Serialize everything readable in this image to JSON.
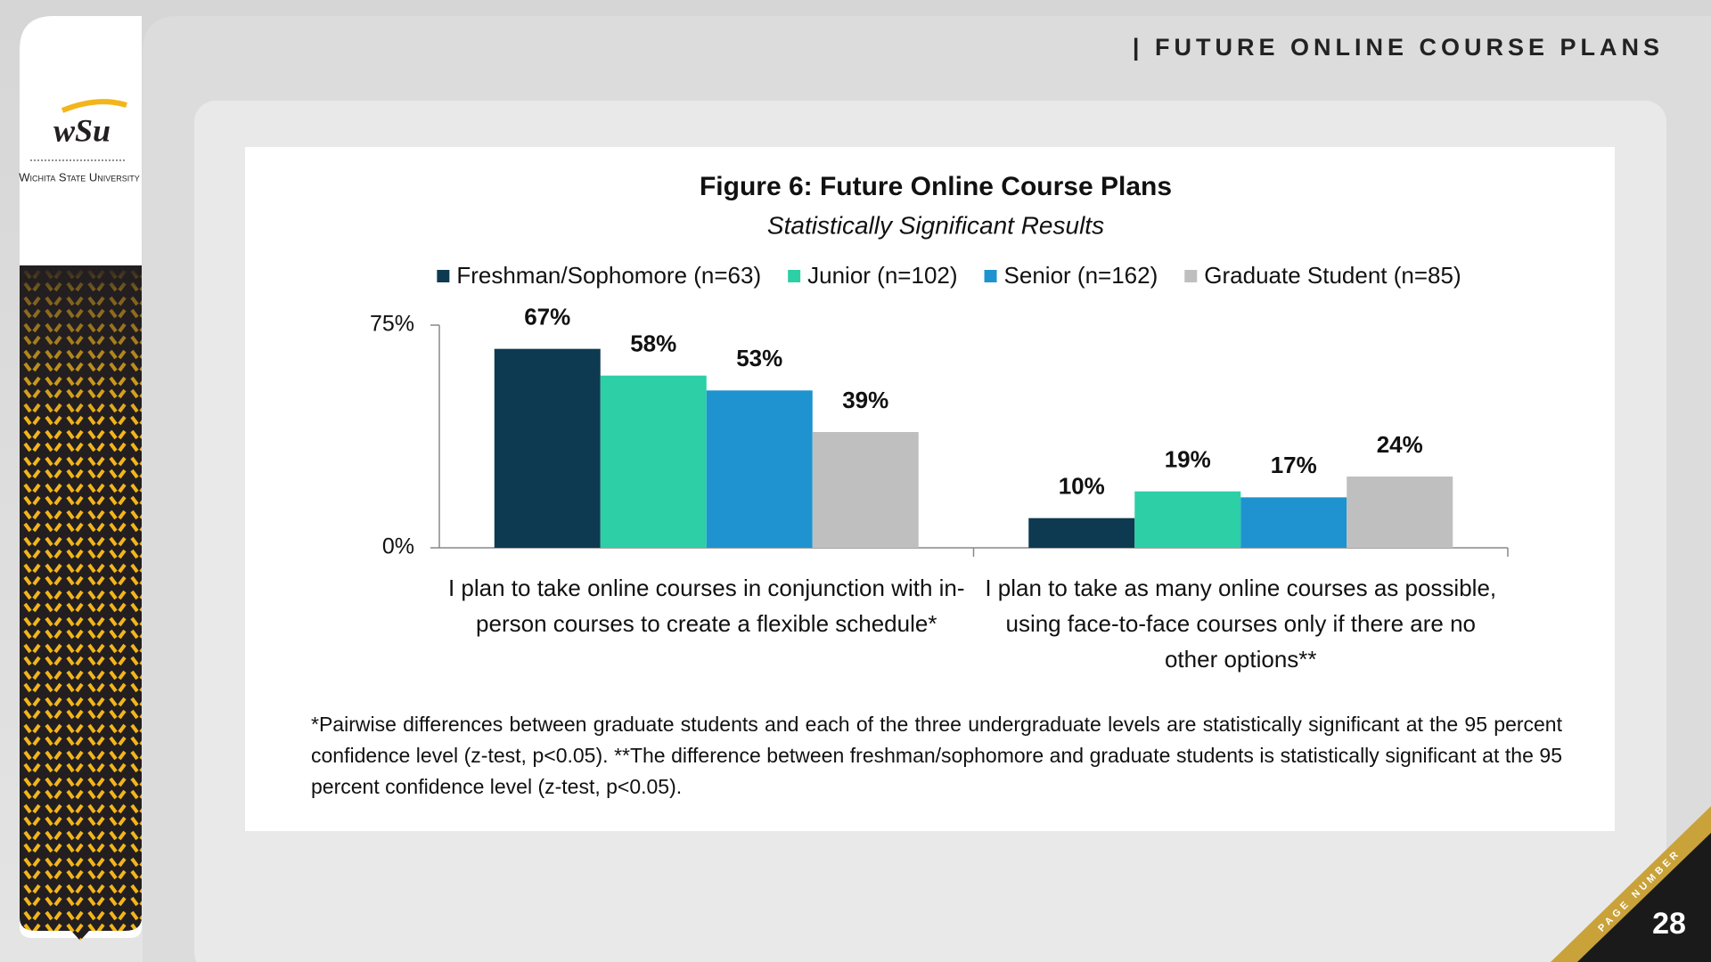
{
  "header": {
    "title": "| FUTURE ONLINE COURSE PLANS"
  },
  "logo": {
    "mark": "wSu",
    "name": "Wichita State University"
  },
  "chart_data": {
    "type": "bar",
    "title": "Figure 6: Future Online Course Plans",
    "subtitle": "Statistically Significant Results",
    "categories": [
      "I plan to take online courses in conjunction with in-person courses to create a flexible schedule*",
      "I plan to take as many online courses as possible, using face-to-face courses only if there are no other options**"
    ],
    "series": [
      {
        "name": "Freshman/Sophomore (n=63)",
        "color": "#0d3a50",
        "values": [
          67,
          10
        ],
        "value_labels": [
          "67%",
          "10%"
        ]
      },
      {
        "name": "Junior (n=102)",
        "color": "#2dcfa6",
        "values": [
          58,
          19
        ],
        "value_labels": [
          "58%",
          "19%"
        ]
      },
      {
        "name": "Senior (n=162)",
        "color": "#1e93d0",
        "values": [
          53,
          17
        ],
        "value_labels": [
          "53%",
          "17%"
        ]
      },
      {
        "name": "Graduate Student (n=85)",
        "color": "#bfbfbf",
        "values": [
          39,
          24
        ],
        "value_labels": [
          "39%",
          "24%"
        ]
      }
    ],
    "ylim": [
      0,
      75
    ],
    "yticks": [
      {
        "value": 0,
        "label": "0%"
      },
      {
        "value": 75,
        "label": "75%"
      }
    ],
    "legend": "top"
  },
  "footnote": "*Pairwise differences between graduate students and each of the three undergraduate levels are statistically significant at the 95 percent confidence level (z-test, p<0.05). **The difference between freshman/sophomore and graduate students is statistically significant at the 95 percent confidence level (z-test, p<0.05).",
  "page": {
    "label": "PAGE NUMBER",
    "number": "28"
  }
}
